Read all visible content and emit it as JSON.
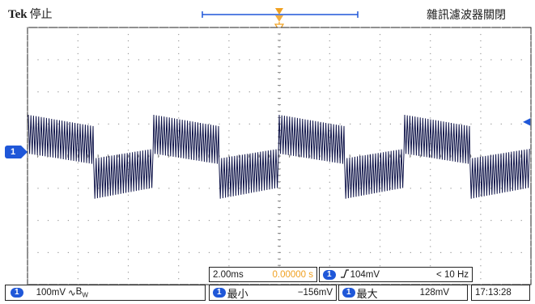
{
  "header": {
    "brand": "Tek",
    "run_state": "停止",
    "filter_status": "雜訊濾波器關閉"
  },
  "waveform": {
    "channel": "1",
    "trace_color": "#0d1248",
    "pattern": "square wave with high-frequency ripple and drooping tops",
    "segments": [
      {
        "from": 0.0,
        "to": 0.26,
        "level": "high"
      },
      {
        "from": 0.26,
        "to": 0.5,
        "level": "low"
      },
      {
        "from": 0.5,
        "to": 0.76,
        "level": "high"
      },
      {
        "from": 0.76,
        "to": 1.0,
        "level": "low"
      }
    ],
    "repeats": 2
  },
  "timebase": {
    "scale": "2.00ms",
    "position": "0.00000 s",
    "position_color": "#f0a020"
  },
  "trigger": {
    "channel": "1",
    "slope_icon": "rising-edge-icon",
    "level": "104mV",
    "frequency": "< 10 Hz"
  },
  "channel1": {
    "label": "1",
    "scale": "100mV",
    "coupling_icon": "ac-coupling-icon",
    "bw_icon": "bandwidth-limit-icon",
    "coupling_text": "∿",
    "bw_text": "B",
    "bw_sub": "W"
  },
  "measurements": [
    {
      "channel": "1",
      "name": "最小",
      "value": "−156mV"
    },
    {
      "channel": "1",
      "name": "最大",
      "value": "128mV"
    }
  ],
  "clock": "17:13:28",
  "colors": {
    "accent_blue": "#1f57d8",
    "trigger_orange": "#f0a020",
    "grid_dots": "#9a9a9a",
    "frame": "#222222"
  }
}
